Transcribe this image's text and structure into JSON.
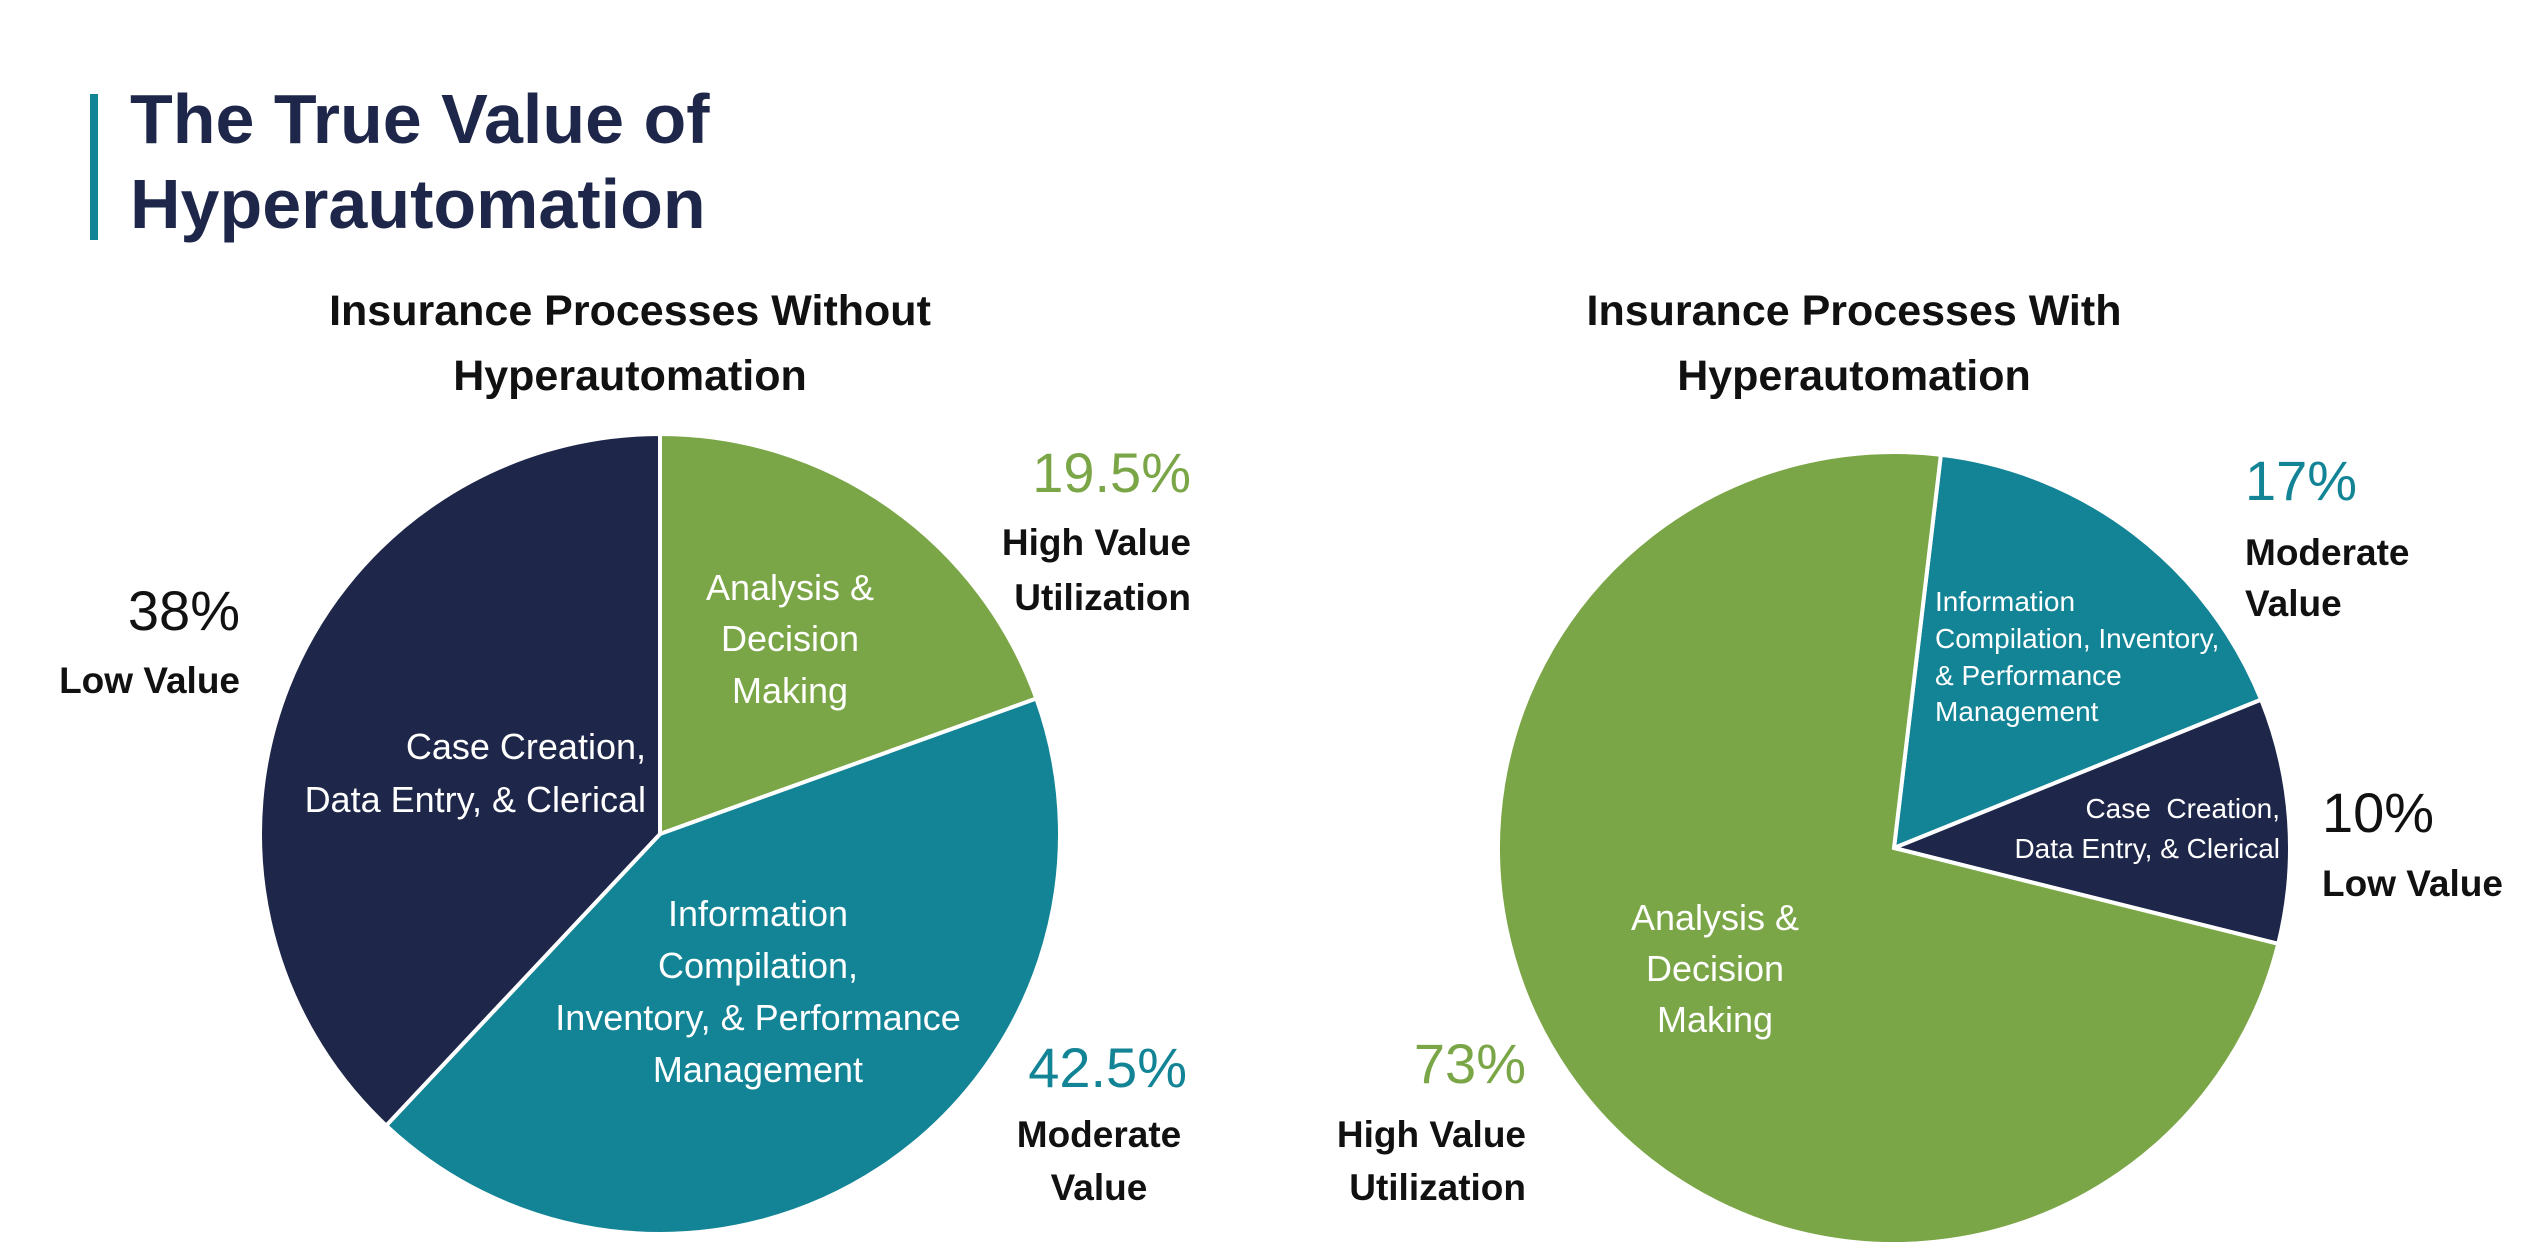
{
  "page_title": [
    "The True Value of",
    "Hyperautomation"
  ],
  "colors": {
    "accent_bar": "#138496",
    "title": "#1e2749",
    "high": "#7ba647",
    "moderate": "#138496",
    "low": "#1e2749"
  },
  "chart_data": [
    {
      "type": "pie",
      "title": [
        "Insurance Processes Without",
        "Hyperautomation"
      ],
      "slices": [
        {
          "label": [
            "Analysis &",
            "Decision",
            "Making"
          ],
          "value": 19.5,
          "value_label": "19.5%",
          "category": [
            "High Value",
            "Utilization"
          ],
          "color": "#7ba647"
        },
        {
          "label": [
            "Information",
            "Compilation,",
            "Inventory, & Performance",
            "Management"
          ],
          "value": 42.5,
          "value_label": "42.5%",
          "category": [
            "Moderate",
            "Value"
          ],
          "color": "#138496"
        },
        {
          "label": [
            "Case Creation,",
            "Data Entry, & Clerical"
          ],
          "value": 38,
          "value_label": "38%",
          "category": [
            "Low Value"
          ],
          "color": "#1e2749"
        }
      ]
    },
    {
      "type": "pie",
      "title": [
        "Insurance Processes With",
        "Hyperautomation"
      ],
      "slices": [
        {
          "label": [
            "Information",
            "Compilation, Inventory,",
            "& Performance",
            "Management"
          ],
          "value": 17,
          "value_label": "17%",
          "category": [
            "Moderate",
            "Value"
          ],
          "color": "#138496"
        },
        {
          "label": [
            "Case  Creation,",
            "Data Entry, & Clerical"
          ],
          "value": 10,
          "value_label": "10%",
          "category": [
            "Low Value"
          ],
          "color": "#1e2749"
        },
        {
          "label": [
            "Analysis &",
            "Decision",
            "Making"
          ],
          "value": 73,
          "value_label": "73%",
          "category": [
            "High Value",
            "Utilization"
          ],
          "color": "#7ba647"
        }
      ]
    }
  ]
}
